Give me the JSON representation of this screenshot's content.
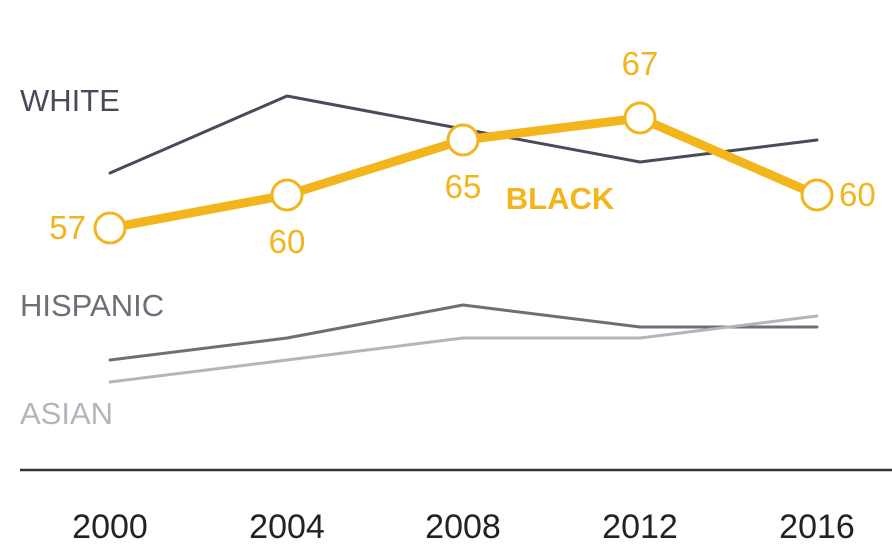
{
  "chart_data": {
    "type": "line",
    "x": [
      "2000",
      "2004",
      "2008",
      "2012",
      "2016"
    ],
    "series": [
      {
        "name": "WHITE",
        "values": [
          62,
          69,
          66,
          63,
          65
        ],
        "color": "#4a4a5a",
        "labeled": false
      },
      {
        "name": "BLACK",
        "values": [
          57,
          60,
          65,
          67,
          60
        ],
        "color": "#f2b51c",
        "labeled": true
      },
      {
        "name": "HISPANIC",
        "values": [
          45,
          47,
          50,
          48,
          48
        ],
        "color": "#6e6e78",
        "labeled": false
      },
      {
        "name": "ASIAN",
        "values": [
          43,
          45,
          47,
          47,
          49
        ],
        "color": "#b4b4bc",
        "labeled": false
      }
    ],
    "ylim": [
      35,
      75
    ],
    "grid": false,
    "legend": "inline-left"
  }
}
